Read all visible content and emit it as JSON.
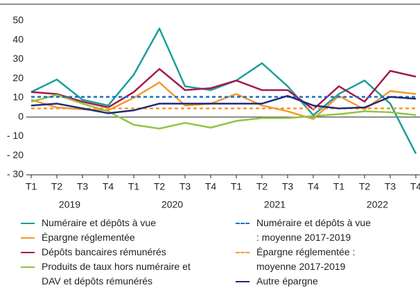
{
  "chart_data": {
    "type": "line",
    "categories": [
      "T1",
      "T2",
      "T3",
      "T4",
      "T1",
      "T2",
      "T3",
      "T4",
      "T1",
      "T2",
      "T3",
      "T4",
      "T1",
      "T2",
      "T3",
      "T4"
    ],
    "years": [
      "2019",
      "2020",
      "2021",
      "2022"
    ],
    "ylim": [
      -30,
      50
    ],
    "yticks": [
      50,
      40,
      30,
      20,
      10,
      0,
      {
        "value": -10,
        "label": "- 10"
      },
      {
        "value": -20,
        "label": "- 20"
      },
      {
        "value": -30,
        "label": "- 30"
      }
    ],
    "series": [
      {
        "name": "Numéraire et dépôts à vue",
        "color": "#1a9e9a",
        "values": [
          13,
          19.5,
          9,
          6,
          22,
          46,
          16,
          14,
          19,
          28,
          16,
          1,
          12,
          19,
          7,
          -19
        ]
      },
      {
        "name": "Épargne réglementée",
        "color": "#f39a2e",
        "values": [
          9,
          5,
          4,
          3.5,
          10,
          18,
          6,
          7,
          12,
          6,
          3,
          -1,
          11,
          4,
          13.5,
          12
        ]
      },
      {
        "name": "Dépôts bancaires rémunérés",
        "color": "#a6194b",
        "values": [
          13,
          12,
          8,
          5,
          13,
          25,
          14,
          15,
          19,
          14,
          14,
          4,
          16,
          8,
          24,
          21
        ]
      },
      {
        "name": "Produits de taux hors numéraire et DAV et dépôts rémunérés",
        "color": "#8dc63f",
        "values": [
          8,
          11.5,
          7,
          3,
          -4,
          -6,
          -3,
          -5.5,
          -2,
          -0.5,
          -0.5,
          0.5,
          1.5,
          3,
          2.5,
          1
        ]
      },
      {
        "name": "Numéraire et dépôts à vue : moyenne 2017-2019",
        "color": "#1e6fc0",
        "dashed": true,
        "values": [
          10.5,
          10.5,
          10.5,
          10.5,
          10.5,
          10.5,
          10.5,
          10.5,
          10.5,
          10.5,
          10.5,
          10.5,
          10.5,
          10.5,
          10.5,
          10.5
        ]
      },
      {
        "name": "Épargne réglementée : moyenne 2017-2019",
        "color": "#f39a2e",
        "dashed": true,
        "values": [
          4.5,
          4.5,
          4.5,
          4.5,
          4.5,
          4.5,
          4.5,
          4.5,
          4.5,
          4.5,
          4.5,
          4.5,
          4.5,
          4.5,
          4.5,
          4.5
        ]
      },
      {
        "name": "Autre épargne",
        "color": "#1f2a7a",
        "values": [
          6,
          7,
          4.5,
          2,
          3.5,
          7,
          7,
          7,
          7,
          7,
          11,
          6,
          4.5,
          5,
          10.5,
          9.5
        ]
      }
    ]
  }
}
